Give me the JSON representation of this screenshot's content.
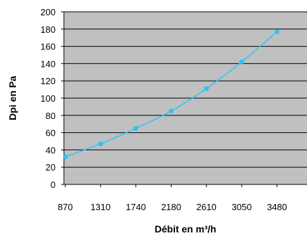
{
  "chart_data": {
    "type": "line",
    "categories": [
      "870",
      "1310",
      "1740",
      "2180",
      "2610",
      "3050",
      "3480"
    ],
    "series": [
      {
        "values": [
          32,
          47,
          65,
          85,
          111,
          142,
          177
        ]
      }
    ],
    "xlabel": "Débit en m³/h",
    "ylabel": "Dpi en Pa",
    "ylim": [
      0,
      200
    ],
    "yticks": [
      "0",
      "20",
      "40",
      "60",
      "80",
      "100",
      "120",
      "140",
      "160",
      "180",
      "200"
    ],
    "grid": true,
    "smooth": true,
    "plot_background": "#c0c0c0",
    "line_color": "#29c5f6",
    "marker_color": "#29c5f6",
    "grid_color": "#000000"
  }
}
